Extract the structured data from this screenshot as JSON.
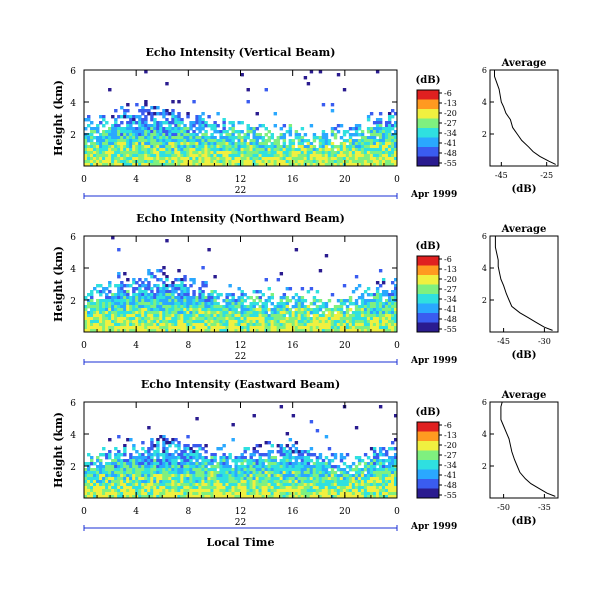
{
  "chart_data": [
    {
      "type": "heatmap",
      "title": "Echo Intensity (Vertical Beam)",
      "ylabel": "Height (km)",
      "yticks": [
        "6",
        "4",
        "2"
      ],
      "ylim": [
        0,
        6
      ],
      "xticks": [
        "0",
        "4",
        "8",
        "12",
        "16",
        "20",
        "0"
      ],
      "xlim": [
        0,
        24
      ],
      "day": "22",
      "date_label": "Apr 1999",
      "colorbar": {
        "unit": "(dB)",
        "ticks": [
          "-6",
          "-13",
          "-20",
          "-27",
          "-34",
          "-41",
          "-48",
          "-55"
        ]
      },
      "average": {
        "title": "Average",
        "xlabel": "(dB)",
        "xticks": [
          "-45",
          "-25"
        ],
        "xlim": [
          -50,
          -20
        ],
        "yticks": [
          "6",
          "4",
          "2"
        ],
        "ylim": [
          0,
          6
        ],
        "profile": [
          [
            0.1,
            -21
          ],
          [
            0.3,
            -24
          ],
          [
            0.6,
            -28
          ],
          [
            0.9,
            -31
          ],
          [
            1.2,
            -33
          ],
          [
            1.6,
            -36
          ],
          [
            2.0,
            -38
          ],
          [
            2.4,
            -40
          ],
          [
            2.9,
            -41
          ],
          [
            3.3,
            -43
          ],
          [
            3.7,
            -44
          ],
          [
            4.0,
            -45
          ],
          [
            4.4,
            -45.5
          ],
          [
            4.8,
            -46
          ],
          [
            5.2,
            -47
          ],
          [
            5.6,
            -48
          ],
          [
            6.0,
            -48
          ]
        ]
      }
    },
    {
      "type": "heatmap",
      "title": "Echo Intensity (Northward Beam)",
      "ylabel": "Height (km)",
      "yticks": [
        "6",
        "4",
        "2"
      ],
      "ylim": [
        0,
        6
      ],
      "xticks": [
        "0",
        "4",
        "8",
        "12",
        "16",
        "20",
        "0"
      ],
      "xlim": [
        0,
        24
      ],
      "day": "22",
      "date_label": "Apr 1999",
      "colorbar": {
        "unit": "(dB)",
        "ticks": [
          "-6",
          "-13",
          "-20",
          "-27",
          "-34",
          "-41",
          "-48",
          "-55"
        ]
      },
      "average": {
        "title": "Average",
        "xlabel": "(dB)",
        "xticks": [
          "-45",
          "-30"
        ],
        "xlim": [
          -50,
          -25
        ],
        "yticks": [
          "6",
          "4",
          "2"
        ],
        "ylim": [
          0,
          6
        ],
        "profile": [
          [
            0.1,
            -27
          ],
          [
            0.3,
            -30
          ],
          [
            0.6,
            -33
          ],
          [
            0.9,
            -36
          ],
          [
            1.2,
            -39
          ],
          [
            1.6,
            -42
          ],
          [
            2.0,
            -43
          ],
          [
            2.4,
            -44
          ],
          [
            2.9,
            -45
          ],
          [
            3.3,
            -46
          ],
          [
            3.7,
            -46.5
          ],
          [
            4.1,
            -47
          ],
          [
            4.5,
            -47
          ],
          [
            4.9,
            -47.5
          ],
          [
            5.3,
            -48
          ],
          [
            5.7,
            -48
          ],
          [
            6.0,
            -48
          ]
        ]
      }
    },
    {
      "type": "heatmap",
      "title": "Echo Intensity (Eastward Beam)",
      "ylabel": "Height (km)",
      "yticks": [
        "6",
        "4",
        "2"
      ],
      "ylim": [
        0,
        6
      ],
      "xticks": [
        "0",
        "4",
        "8",
        "12",
        "16",
        "20",
        "0"
      ],
      "xlim": [
        0,
        24
      ],
      "day": "22",
      "date_label": "Apr 1999",
      "xlabel": "Local Time",
      "colorbar": {
        "unit": "(dB)",
        "ticks": [
          "-6",
          "-13",
          "-20",
          "-27",
          "-34",
          "-41",
          "-48",
          "-55"
        ]
      },
      "average": {
        "title": "Average",
        "xlabel": "(dB)",
        "xticks": [
          "-50",
          "-35"
        ],
        "xlim": [
          -55,
          -30
        ],
        "yticks": [
          "6",
          "4",
          "2"
        ],
        "ylim": [
          0,
          6
        ],
        "profile": [
          [
            0.1,
            -31
          ],
          [
            0.3,
            -34
          ],
          [
            0.6,
            -37
          ],
          [
            0.9,
            -40
          ],
          [
            1.2,
            -42
          ],
          [
            1.6,
            -44
          ],
          [
            2.0,
            -45
          ],
          [
            2.4,
            -46
          ],
          [
            2.9,
            -47
          ],
          [
            3.3,
            -47.5
          ],
          [
            3.7,
            -48
          ],
          [
            4.1,
            -49
          ],
          [
            4.5,
            -50
          ],
          [
            4.9,
            -51
          ],
          [
            5.3,
            -51
          ],
          [
            5.7,
            -51
          ],
          [
            6.0,
            -50.5
          ]
        ]
      }
    }
  ],
  "colors": {
    "scale": [
      "#2a1b8f",
      "#3a5cf0",
      "#2aa8ff",
      "#2fe0e0",
      "#7ff07f",
      "#f0f040",
      "#ff9a20",
      "#e02020"
    ],
    "axis": "#000000",
    "timeline": "#1a2fd6"
  }
}
